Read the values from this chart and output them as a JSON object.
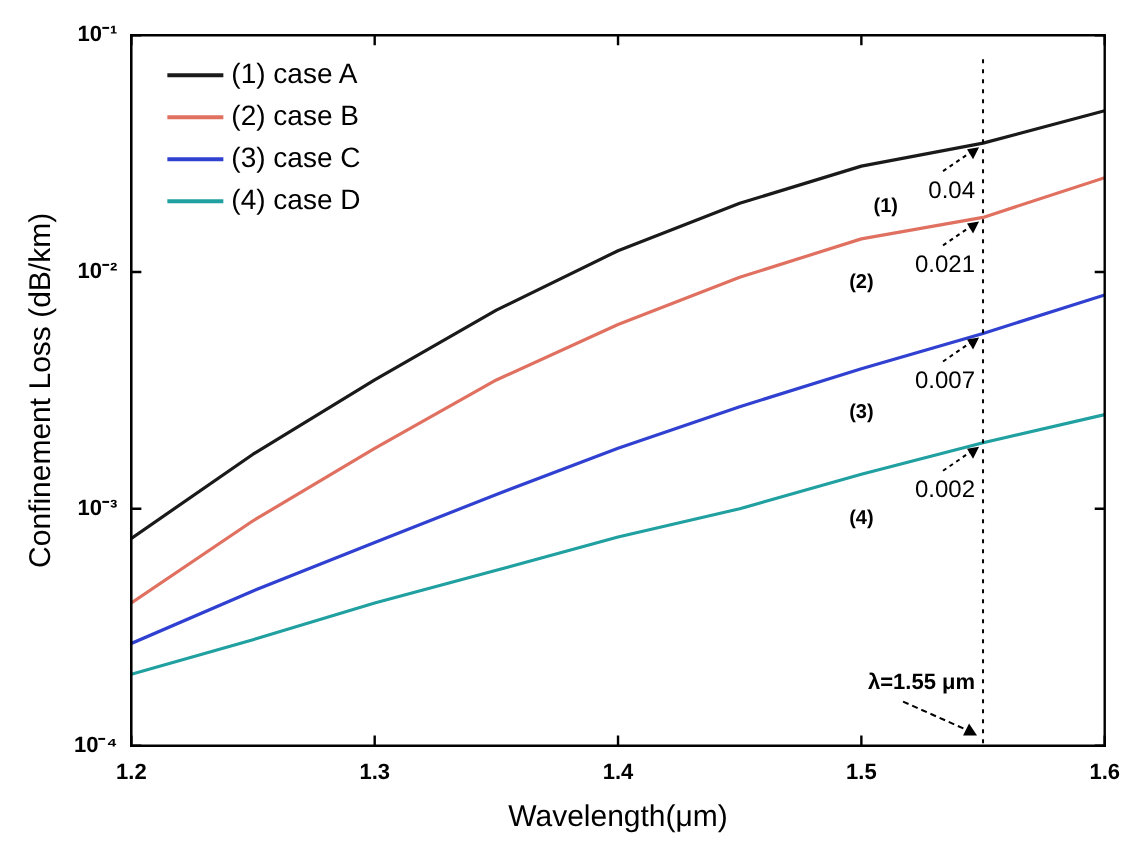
{
  "chart_data": {
    "type": "line",
    "xlabel": "Wavelength(μm)",
    "ylabel": "Confinement Loss (dB/km)",
    "x": [
      1.2,
      1.25,
      1.3,
      1.35,
      1.4,
      1.45,
      1.5,
      1.55,
      1.6
    ],
    "series": [
      {
        "name": "(1) case A",
        "color": "#1a1a1a",
        "values": [
          0.00075,
          0.0017,
          0.0035,
          0.0069,
          0.0123,
          0.0195,
          0.028,
          0.035,
          0.048
        ]
      },
      {
        "name": "(2) case B",
        "color": "#e07060",
        "values": [
          0.0004,
          0.00089,
          0.0018,
          0.0035,
          0.006,
          0.0095,
          0.0138,
          0.017,
          0.025
        ]
      },
      {
        "name": "(3) case C",
        "color": "#3040d0",
        "values": [
          0.00027,
          0.00045,
          0.00072,
          0.00115,
          0.0018,
          0.0027,
          0.0039,
          0.0055,
          0.008
        ]
      },
      {
        "name": "(4) case D",
        "color": "#20a0a0",
        "values": [
          0.0002,
          0.00028,
          0.0004,
          0.00055,
          0.00076,
          0.001,
          0.0014,
          0.0019,
          0.0025
        ]
      }
    ],
    "xlim": [
      1.2,
      1.6
    ],
    "xticks": [
      1.2,
      1.3,
      1.4,
      1.5,
      1.6
    ],
    "ylim": [
      0.0001,
      0.1
    ],
    "yticks": [
      {
        "value": 0.0001,
        "label": "10⁻⁴"
      },
      {
        "value": 0.001,
        "label": "10⁻³"
      },
      {
        "value": 0.01,
        "label": "10⁻²"
      },
      {
        "value": 0.1,
        "label": "10⁻¹"
      }
    ],
    "log": "y",
    "grid": false,
    "legend": "top left",
    "marker": "none",
    "line_style": "solid",
    "ref_lines": [
      {
        "axis": "x",
        "value": 1.55,
        "label": "λ=1.55 μm",
        "line_style": "dotted",
        "color": "#000000"
      }
    ],
    "annotations": [
      {
        "text": "0.04",
        "x": 1.55,
        "y": 0.035
      },
      {
        "text": "0.021",
        "x": 1.55,
        "y": 0.017
      },
      {
        "text": "0.007",
        "x": 1.55,
        "y": 0.0055
      },
      {
        "text": "0.002",
        "x": 1.55,
        "y": 0.0019
      },
      {
        "text": "(1)",
        "x": 1.51,
        "y": 0.029
      },
      {
        "text": "(2)",
        "x": 1.5,
        "y": 0.0138
      },
      {
        "text": "(3)",
        "x": 1.5,
        "y": 0.0039
      },
      {
        "text": "(4)",
        "x": 1.5,
        "y": 0.0014
      }
    ]
  }
}
